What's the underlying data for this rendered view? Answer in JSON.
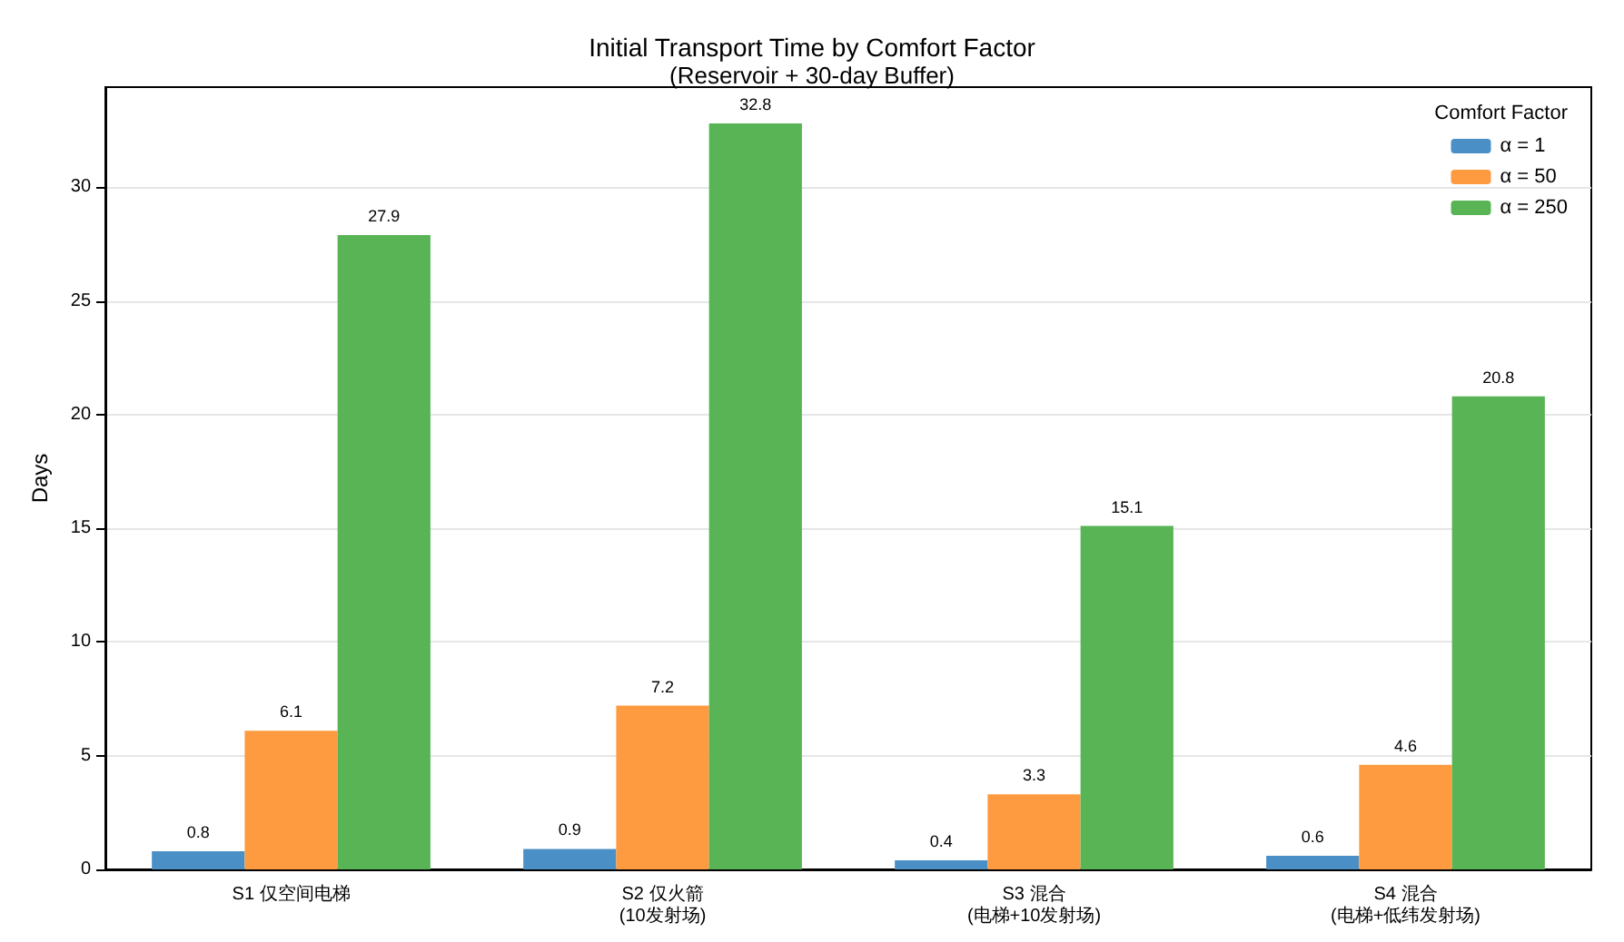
{
  "chart_data": {
    "type": "bar",
    "title": "Initial Transport Time by Comfort Factor",
    "subtitle": "(Reservoir + 30-day Buffer)",
    "ylabel": "Days",
    "legend_title": "Comfort Factor",
    "categories": [
      "S1 仅空间电梯",
      "S2 仅火箭\n(10发射场)",
      "S3 混合\n(电梯+10发射场)",
      "S4 混合\n(电梯+低纬发射场)"
    ],
    "series": [
      {
        "name": "α = 1",
        "color": "#4a8fc6",
        "values": [
          0.8,
          0.9,
          0.4,
          0.6
        ]
      },
      {
        "name": "α = 50",
        "color": "#fe9a3f",
        "values": [
          6.1,
          7.2,
          3.3,
          4.6
        ]
      },
      {
        "name": "α = 250",
        "color": "#58b455",
        "values": [
          27.9,
          32.8,
          15.1,
          20.8
        ]
      }
    ],
    "ylim": [
      0,
      34.4
    ],
    "yticks": [
      0,
      5,
      10,
      15,
      20,
      25,
      30
    ],
    "grid": "y",
    "legend": "top right",
    "data_labels": true
  }
}
